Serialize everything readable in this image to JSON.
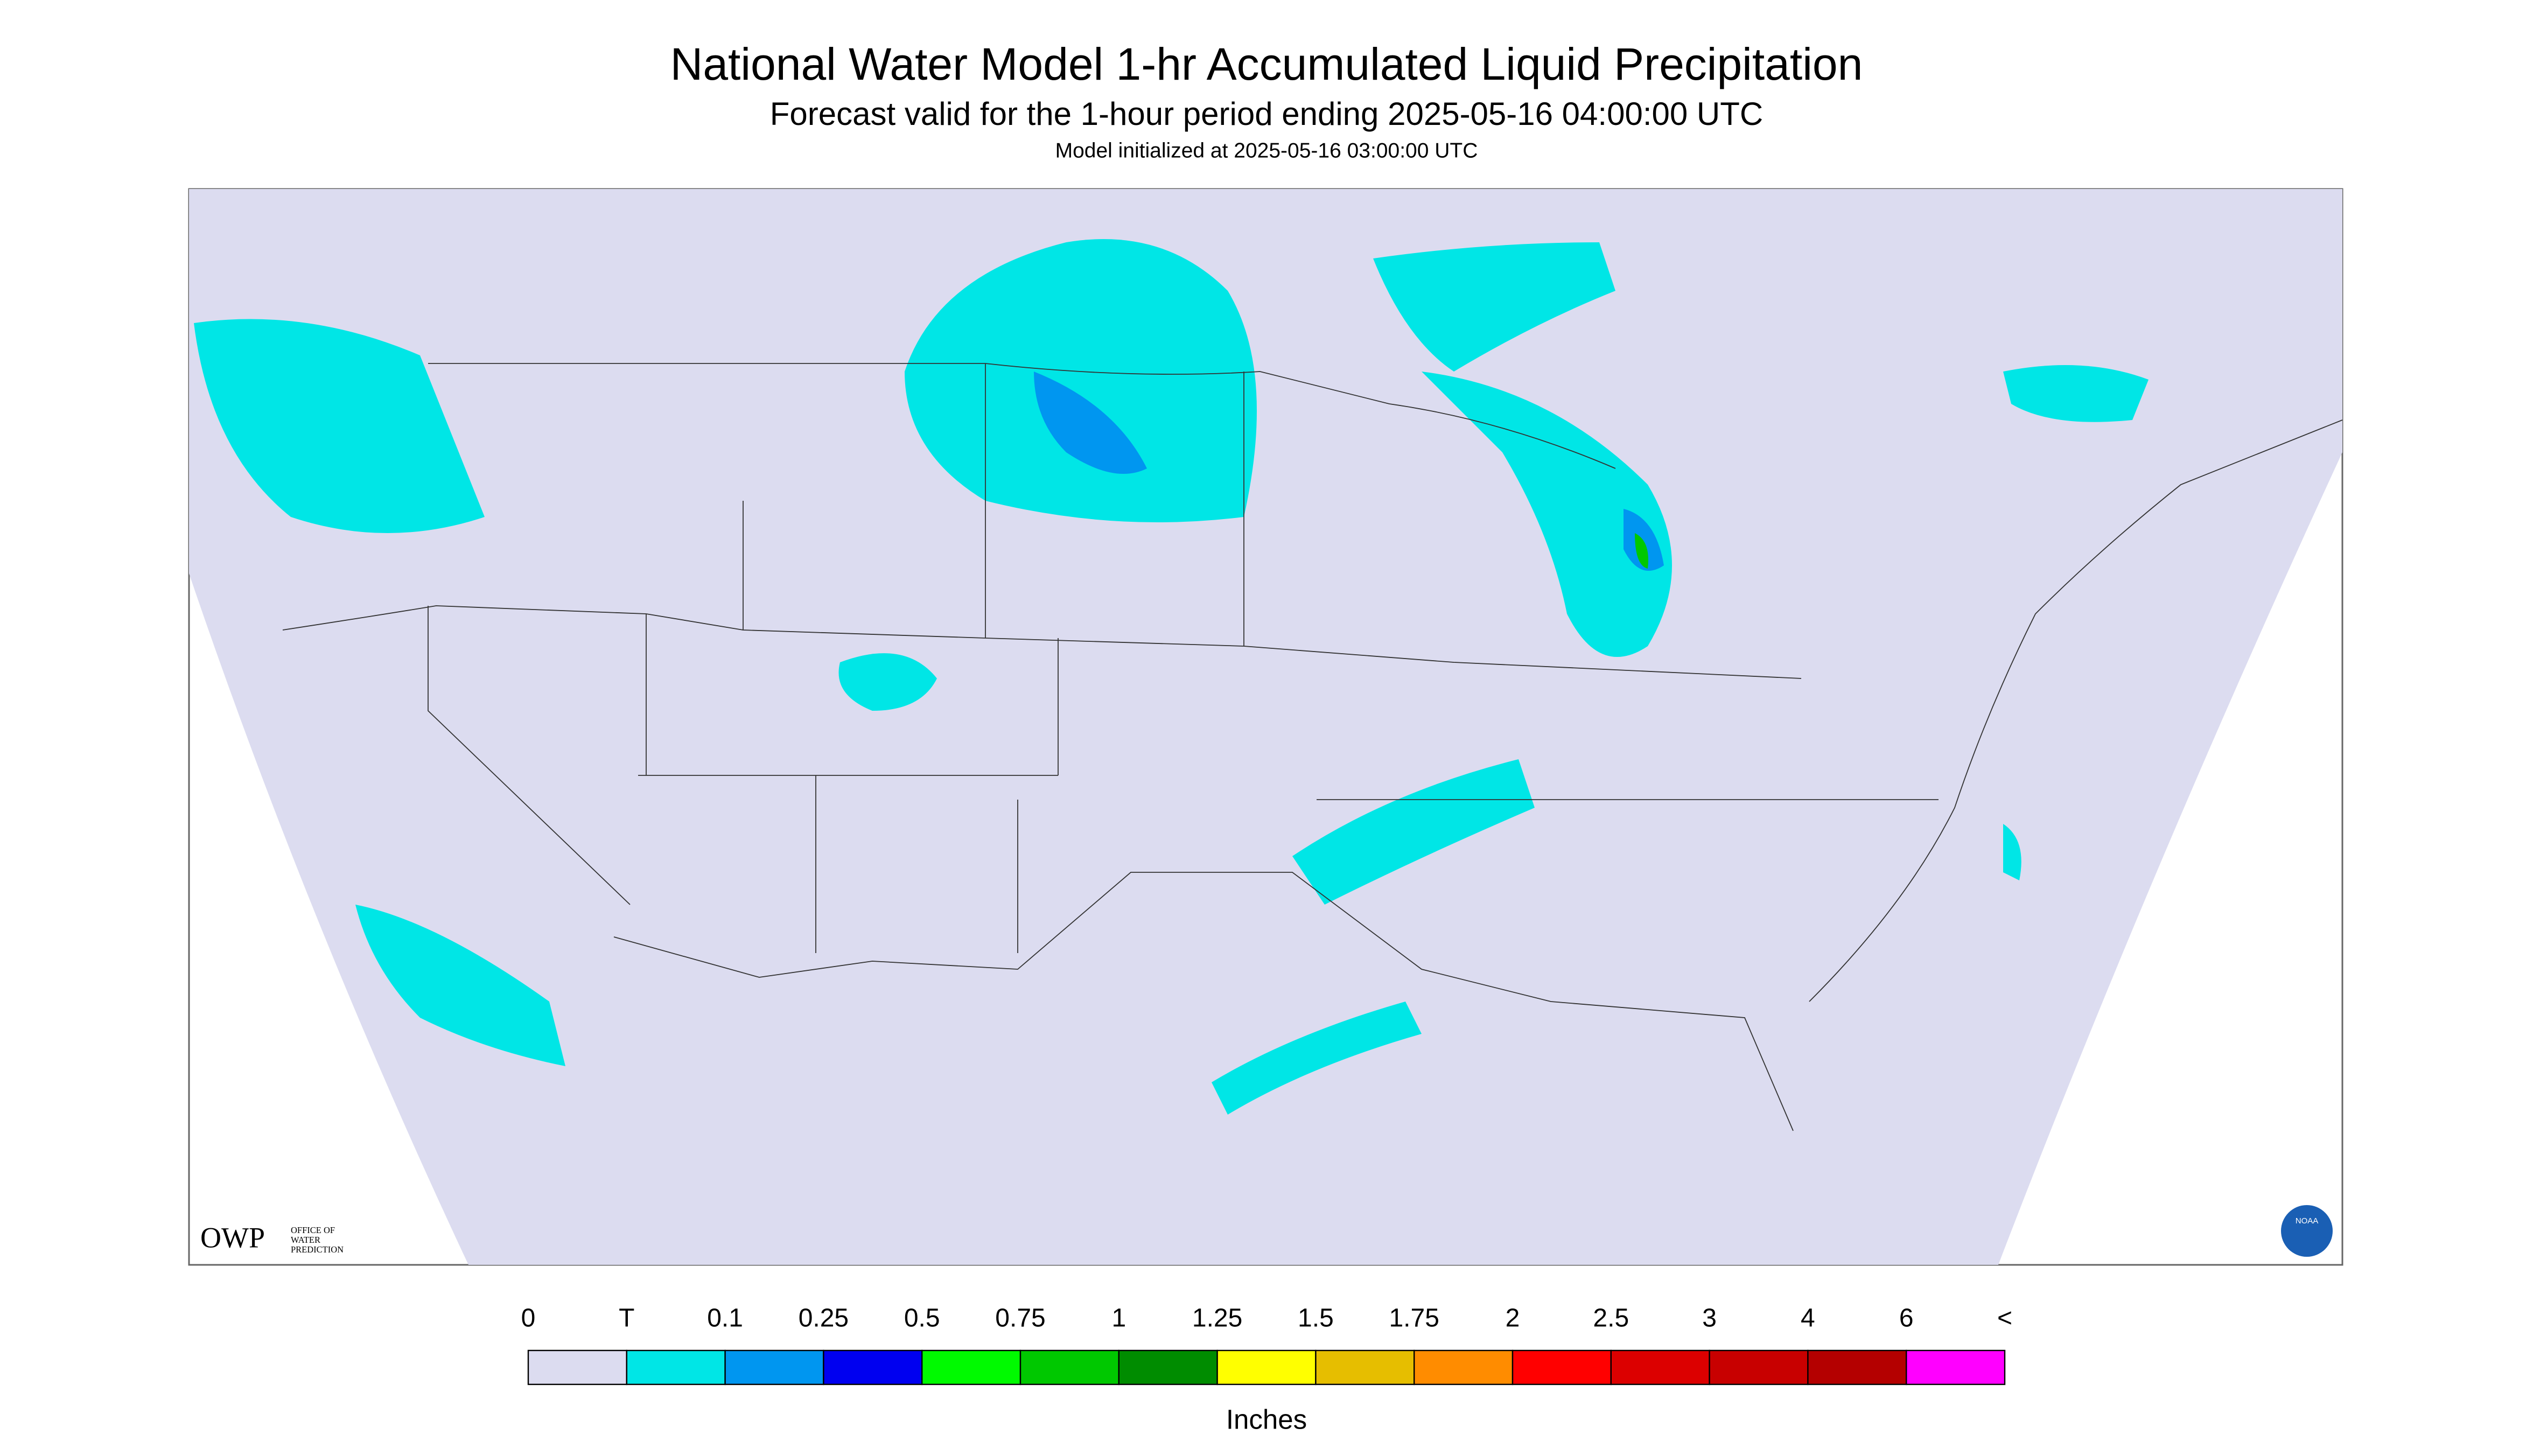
{
  "header": {
    "title": "National Water Model 1-hr Accumulated Liquid Precipitation",
    "subtitle": "Forecast valid for the 1-hour period ending 2025-05-16 04:00:00 UTC",
    "init": "Model initialized at 2025-05-16 03:00:00 UTC"
  },
  "logos": {
    "owp": "OWP",
    "owp_name": [
      "OFFICE OF",
      "WATER",
      "PREDICTION"
    ],
    "noaa": "NOAA"
  },
  "legend": {
    "labels": [
      "0",
      "T",
      "0.1",
      "0.25",
      "0.5",
      "0.75",
      "1",
      "1.25",
      "1.5",
      "1.75",
      "2",
      "2.5",
      "3",
      "4",
      "6",
      "<"
    ],
    "colors": [
      "#dcdcf0",
      "#00e6e6",
      "#0096f0",
      "#0000f0",
      "#00fa00",
      "#00c800",
      "#008c00",
      "#ffff00",
      "#e6be00",
      "#ff8c00",
      "#ff0000",
      "#dc0000",
      "#c80000",
      "#b40000",
      "#ff00ff",
      "#9650c8"
    ],
    "unit": "Inches"
  }
}
